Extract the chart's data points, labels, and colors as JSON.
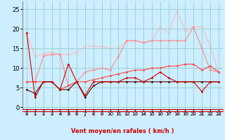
{
  "xlabel": "Vent moyen/en rafales ( km/h )",
  "background_color": "#cceeff",
  "grid_color": "#99cccc",
  "xlim": [
    -0.5,
    23.5
  ],
  "ylim": [
    -0.5,
    27
  ],
  "yticks": [
    0,
    5,
    10,
    15,
    20,
    25
  ],
  "xticks": [
    0,
    1,
    2,
    3,
    4,
    5,
    6,
    7,
    8,
    9,
    10,
    11,
    12,
    13,
    14,
    15,
    16,
    17,
    18,
    19,
    20,
    21,
    22,
    23
  ],
  "series": [
    {
      "x": [
        0,
        1,
        2,
        3,
        4,
        5,
        6,
        7,
        8,
        9,
        10,
        11,
        12,
        13,
        14,
        15,
        16,
        17,
        18,
        19,
        20,
        21,
        22,
        23
      ],
      "y": [
        19.0,
        13.0,
        13.5,
        14.0,
        13.5,
        13.5,
        14.0,
        15.5,
        15.5,
        15.5,
        15.0,
        15.0,
        17.0,
        17.0,
        16.5,
        17.0,
        20.5,
        19.0,
        24.5,
        19.5,
        20.5,
        20.5,
        15.5,
        9.0
      ],
      "color": "#ffbbbb",
      "linewidth": 0.8,
      "marker": "D",
      "markersize": 1.8,
      "zorder": 1
    },
    {
      "x": [
        0,
        1,
        2,
        3,
        4,
        5,
        6,
        7,
        8,
        9,
        10,
        11,
        12,
        13,
        14,
        15,
        16,
        17,
        18,
        19,
        20,
        21,
        22,
        23
      ],
      "y": [
        6.5,
        6.5,
        13.0,
        13.5,
        13.5,
        5.5,
        6.5,
        9.0,
        9.5,
        10.0,
        9.5,
        13.0,
        17.0,
        17.0,
        16.5,
        17.0,
        17.0,
        17.0,
        17.0,
        17.0,
        20.5,
        15.0,
        9.5,
        9.0
      ],
      "color": "#ff8888",
      "linewidth": 0.8,
      "marker": "D",
      "markersize": 1.8,
      "zorder": 2
    },
    {
      "x": [
        0,
        1,
        2,
        3,
        4,
        5,
        6,
        7,
        8,
        9,
        10,
        11,
        12,
        13,
        14,
        15,
        16,
        17,
        18,
        19,
        20,
        21,
        22,
        23
      ],
      "y": [
        6.5,
        6.5,
        6.5,
        6.5,
        4.5,
        5.5,
        6.5,
        6.5,
        7.0,
        7.5,
        8.0,
        8.5,
        9.0,
        9.5,
        9.5,
        10.0,
        10.0,
        10.5,
        10.5,
        11.0,
        11.0,
        9.5,
        10.5,
        9.0
      ],
      "color": "#ff4444",
      "linewidth": 0.8,
      "marker": "D",
      "markersize": 1.8,
      "zorder": 3
    },
    {
      "x": [
        0,
        1,
        2,
        3,
        4,
        5,
        6,
        7,
        8,
        9,
        10,
        11,
        12,
        13,
        14,
        15,
        16,
        17,
        18,
        19,
        20,
        21,
        22,
        23
      ],
      "y": [
        4.5,
        3.5,
        6.5,
        6.5,
        4.5,
        4.5,
        6.5,
        2.5,
        5.5,
        6.5,
        6.5,
        6.5,
        6.5,
        6.5,
        6.5,
        6.5,
        6.5,
        6.5,
        6.5,
        6.5,
        6.5,
        6.5,
        6.5,
        6.5
      ],
      "color": "#550000",
      "linewidth": 0.8,
      "marker": "D",
      "markersize": 1.8,
      "zorder": 4
    },
    {
      "x": [
        0,
        1,
        2,
        3,
        4,
        5,
        6,
        7,
        8,
        9,
        10,
        11,
        12,
        13,
        14,
        15,
        16,
        17,
        18,
        19,
        20,
        21,
        22,
        23
      ],
      "y": [
        19.0,
        2.5,
        6.5,
        6.5,
        4.5,
        11.0,
        6.5,
        3.0,
        6.5,
        6.5,
        6.5,
        6.5,
        7.5,
        7.5,
        6.5,
        7.5,
        9.0,
        7.5,
        6.5,
        6.5,
        6.5,
        4.0,
        6.5,
        6.5
      ],
      "color": "#cc0000",
      "linewidth": 0.8,
      "marker": "D",
      "markersize": 1.8,
      "zorder": 5
    }
  ],
  "arrow_color": "#cc0000",
  "xlabel_color": "#cc0000",
  "spine_color": "#888888",
  "tick_fontsize": 5,
  "xlabel_fontsize": 6
}
